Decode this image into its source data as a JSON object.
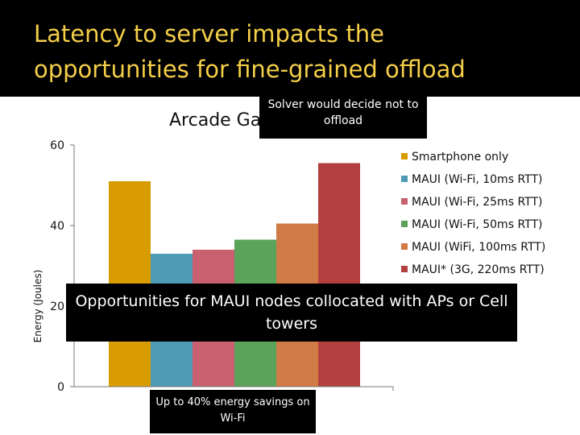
{
  "slide": {
    "title": "Latency to server impacts the\nopportunities for fine-grained offload"
  },
  "callouts": {
    "top": "Solver would decide not to offload",
    "middle": "Opportunities for MAUI nodes collocated with APs or Cell towers",
    "bottom": "Up to 40% energy savings on Wi-Fi"
  },
  "chart_data": {
    "type": "bar",
    "title": "Arcade Ga",
    "ylabel": "Energy (Joules)",
    "xlabel": "",
    "ylim": [
      0,
      60
    ],
    "yticks": [
      0,
      20,
      40,
      60
    ],
    "legend_position": "right",
    "grid": false,
    "series": [
      {
        "name": "Smartphone only",
        "value": 51,
        "color": "#d89c00"
      },
      {
        "name": "MAUI (Wi-Fi, 10ms RTT)",
        "value": 33,
        "color": "#4e9bb6"
      },
      {
        "name": "MAUI (Wi-Fi, 25ms RTT)",
        "value": 34,
        "color": "#c96070"
      },
      {
        "name": "MAUI (Wi-Fi, 50ms RTT)",
        "value": 36.5,
        "color": "#5ba35b"
      },
      {
        "name": "MAUI (WiFi, 100ms RTT)",
        "value": 40.5,
        "color": "#d07a45"
      },
      {
        "name": "MAUI* (3G, 220ms RTT)",
        "value": 55.5,
        "color": "#b33f3f"
      }
    ]
  }
}
